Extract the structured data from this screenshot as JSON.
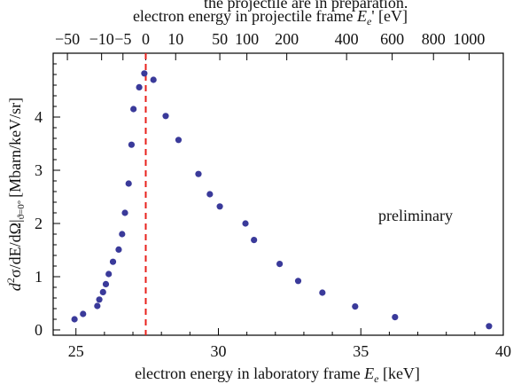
{
  "header_fragment": "the projectile are in preparation.",
  "chart_data": {
    "type": "scatter",
    "xlabel": "electron energy in laboratory frame Ee [keV]",
    "xlabel_parts": [
      "electron energy in laboratory frame ",
      "E",
      "e",
      " [keV]"
    ],
    "x2label": "electron energy in projectile frame Ee' [eV]",
    "x2label_parts": [
      "electron energy in projectile frame ",
      "E",
      "e",
      "' [eV]"
    ],
    "ylabel": "d²σ/dE/dΩ|θ=0° [Mbarn/keV/sr]",
    "ylabel_parts": {
      "d": "d",
      "sup": "2",
      "rest": "σ/dE/dΩ|",
      "sub": "ϑ=0°",
      "unit": "[Mbarn/keV/sr]"
    },
    "xlim": [
      24.2,
      40
    ],
    "ylim": [
      -0.1,
      5.2
    ],
    "x_ticks": [
      25,
      30,
      35,
      40
    ],
    "y_ticks": [
      0,
      1,
      2,
      3,
      4
    ],
    "top_ticks": [
      {
        "label": "−50",
        "x": 24.7
      },
      {
        "label": "−10",
        "x": 25.9
      },
      {
        "label": "−5",
        "x": 26.65
      },
      {
        "label": "0",
        "x": 27.45
      },
      {
        "label": "10",
        "x": 28.5
      },
      {
        "label": "50",
        "x": 30.05
      },
      {
        "label": "100",
        "x": 31.0
      },
      {
        "label": "200",
        "x": 32.4
      },
      {
        "label": "400",
        "x": 34.5
      },
      {
        "label": "600",
        "x": 36.1
      },
      {
        "label": "800",
        "x": 37.55
      },
      {
        "label": "1000",
        "x": 38.8
      }
    ],
    "annotation": "preliminary",
    "vline_x": 27.45,
    "colors": {
      "marker": "#3a3a9a",
      "vline": "#e8211c",
      "axis": "#000000"
    },
    "series": [
      {
        "x": [
          24.95,
          25.25,
          25.75,
          25.82,
          25.95,
          26.05,
          26.15,
          26.3,
          26.5,
          26.62,
          26.72,
          26.85,
          26.95,
          27.02,
          27.22,
          27.4,
          27.72,
          28.15,
          28.6,
          29.3,
          29.7,
          30.05,
          30.95,
          31.25,
          32.15,
          32.8,
          33.65,
          34.8,
          36.2,
          39.5
        ],
        "y": [
          0.2,
          0.3,
          0.45,
          0.57,
          0.71,
          0.86,
          1.05,
          1.28,
          1.51,
          1.8,
          2.2,
          2.75,
          3.48,
          4.15,
          4.56,
          4.82,
          4.7,
          4.02,
          3.57,
          2.93,
          2.55,
          2.32,
          2.0,
          1.69,
          1.24,
          0.92,
          0.7,
          0.44,
          0.24,
          0.07
        ]
      }
    ]
  }
}
